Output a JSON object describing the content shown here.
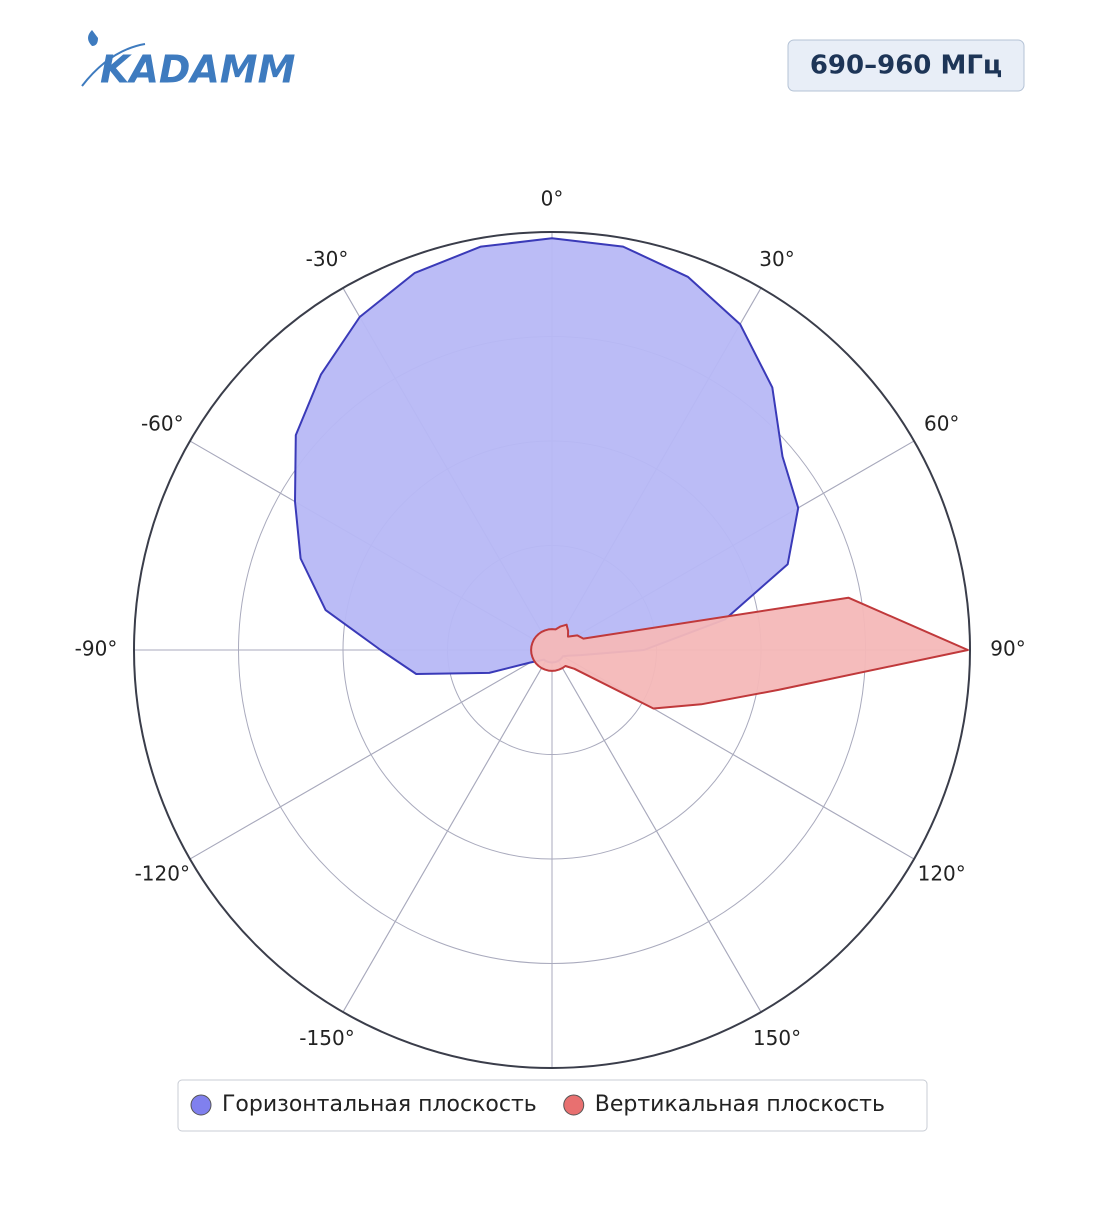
{
  "logo": "KADAMM",
  "badge": "690–960 МГц",
  "chart_data": {
    "type": "polar",
    "theta": [
      -180,
      -170,
      -160,
      -150,
      -140,
      -130,
      -120,
      -110,
      -100,
      -90,
      -80,
      -70,
      -60,
      -50,
      -40,
      -30,
      -20,
      -10,
      0,
      10,
      20,
      30,
      40,
      50,
      60,
      70,
      80,
      90,
      100,
      110,
      120,
      130,
      140,
      150,
      160,
      170
    ],
    "series": [
      {
        "name": "Горизонтальная плоскость",
        "color": "#3a3ab8",
        "fill": "#b7b8f5",
        "marker": "#8080ee",
        "r": [
          0.03,
          0.03,
          0.03,
          0.03,
          0.03,
          0.04,
          0.06,
          0.16,
          0.33,
          0.41,
          0.55,
          0.64,
          0.71,
          0.8,
          0.86,
          0.92,
          0.96,
          0.98,
          0.985,
          0.98,
          0.95,
          0.9,
          0.82,
          0.72,
          0.68,
          0.6,
          0.42,
          0.22,
          0.07,
          0.04,
          0.03,
          0.03,
          0.03,
          0.03,
          0.03,
          0.03
        ]
      },
      {
        "name": "Вертикальная плоскость",
        "color": "#c0393b",
        "fill": "#f4b8b8",
        "marker": "#e87070",
        "r": [
          0.05,
          0.05,
          0.05,
          0.05,
          0.05,
          0.05,
          0.05,
          0.05,
          0.05,
          0.05,
          0.05,
          0.05,
          0.05,
          0.05,
          0.05,
          0.05,
          0.05,
          0.05,
          0.05,
          0.05,
          0.06,
          0.07,
          0.06,
          0.05,
          0.07,
          0.08,
          0.72,
          0.995,
          0.55,
          0.38,
          0.28,
          0.07,
          0.05,
          0.05,
          0.05,
          0.05
        ]
      }
    ],
    "rlim": [
      0,
      1
    ],
    "rticks": [
      0.25,
      0.5,
      0.75,
      1
    ],
    "thetaticks": [
      {
        "value": 0,
        "label": "0°"
      },
      {
        "value": 30,
        "label": "30°"
      },
      {
        "value": 60,
        "label": "60°"
      },
      {
        "value": 90,
        "label": "90°"
      },
      {
        "value": 120,
        "label": "120°"
      },
      {
        "value": 150,
        "label": "150°"
      },
      {
        "value": -150,
        "label": "-150°"
      },
      {
        "value": -120,
        "label": "-120°"
      },
      {
        "value": -90,
        "label": "-90°"
      },
      {
        "value": -60,
        "label": "-60°"
      },
      {
        "value": -30,
        "label": "-30°"
      }
    ],
    "direction": "clockwise",
    "grid": true
  }
}
